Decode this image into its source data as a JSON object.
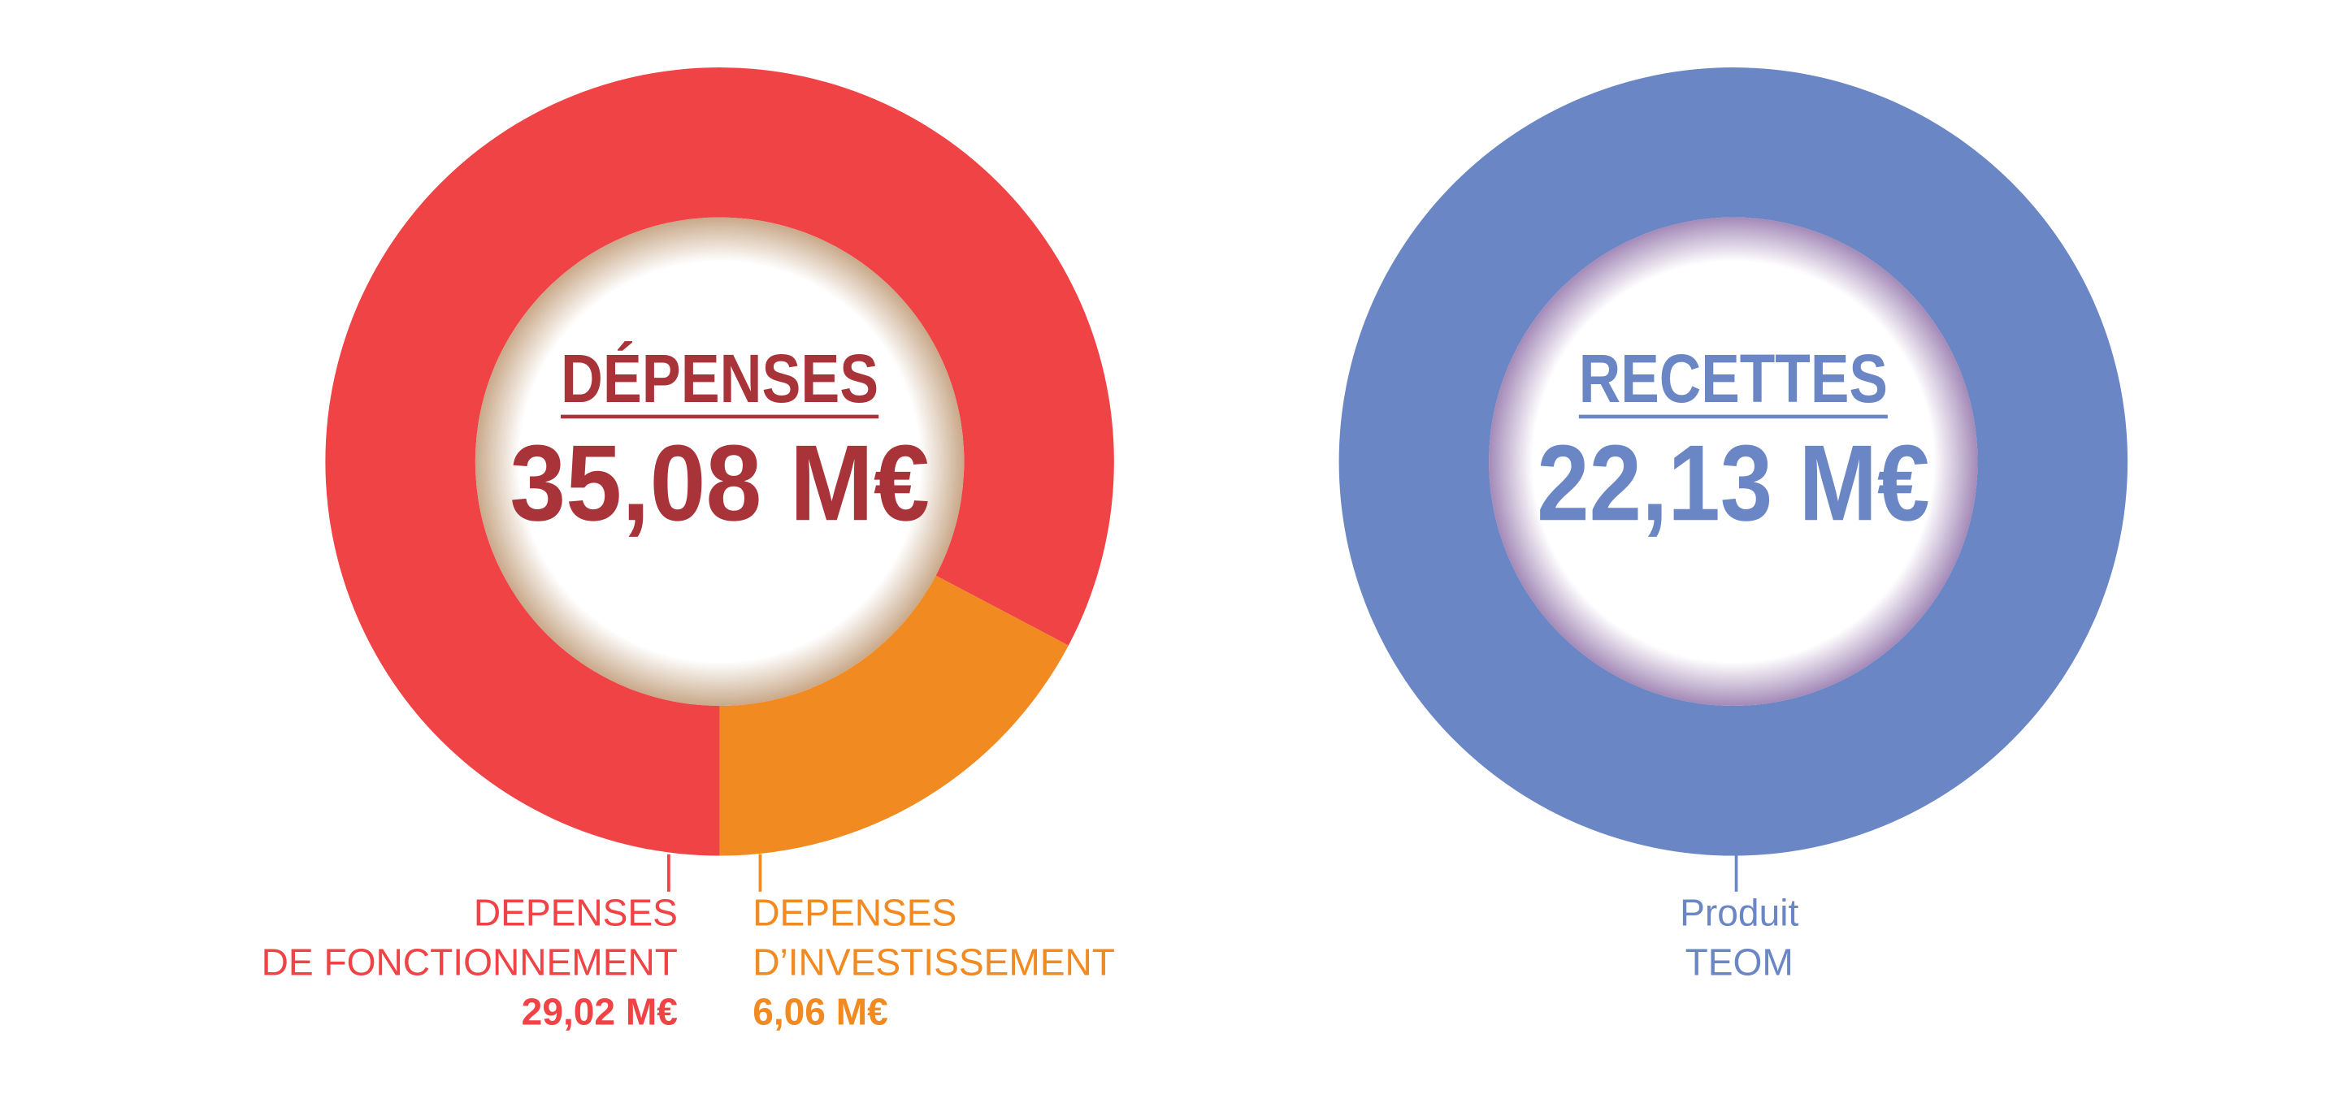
{
  "chart_data": [
    {
      "type": "pie",
      "title": "DÉPENSES",
      "total": {
        "value": 35.08,
        "label": "35,08 M€"
      },
      "title_color": "#a8343a",
      "categories": [
        [
          "DEPENSES",
          "DE FONCTIONNEMENT"
        ],
        [
          "DEPENSES",
          "D’INVESTISSEMENT"
        ]
      ],
      "series": [
        {
          "values": [
            29.02,
            6.06
          ],
          "value_labels": [
            "29,02 M€",
            "6,06 M€"
          ],
          "colors": [
            "#ef4346",
            "#f28a22"
          ]
        }
      ]
    },
    {
      "type": "pie",
      "title": "RECETTES",
      "total": {
        "value": 22.13,
        "label": "22,13 M€"
      },
      "title_color": "#6a86c4",
      "categories": [
        [
          "Produit",
          "TEOM"
        ]
      ],
      "series": [
        {
          "values": [
            22.13
          ],
          "colors": [
            "#6a86c4"
          ]
        }
      ]
    }
  ]
}
